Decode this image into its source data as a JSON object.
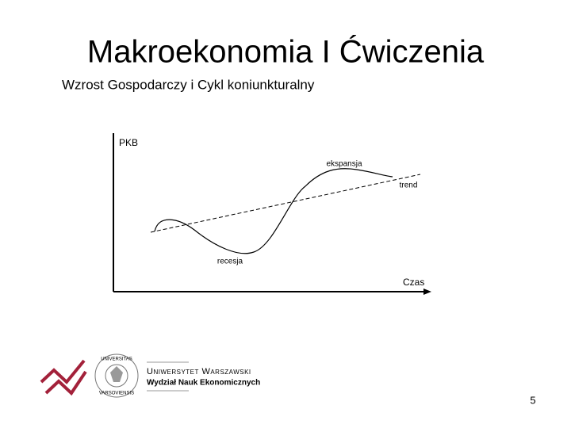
{
  "header": {
    "title": "Makroekonomia I Ćwiczenia",
    "subtitle": "Wzrost Gospodarczy i Cykl koniunkturalny"
  },
  "diagram": {
    "y_axis_label": "PKB",
    "x_axis_label": "Czas",
    "labels": [
      "ekspansja",
      "trend",
      "recesja"
    ]
  },
  "footer": {
    "university": "Uniwersytet Warszawski",
    "faculty": "Wydział Nauk Ekonomicznych",
    "seal_top": "UNIVERSITAS",
    "seal_bottom": "VARSOVIENSIS",
    "page_number": "5"
  }
}
